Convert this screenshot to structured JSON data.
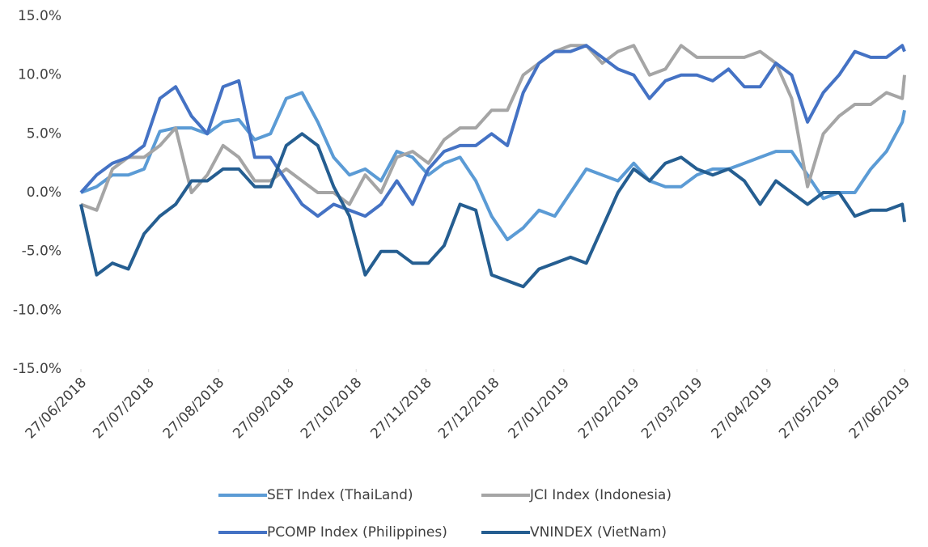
{
  "chart_data": {
    "type": "line",
    "x": [
      "27/06/2018",
      "04/07/2018",
      "11/07/2018",
      "18/07/2018",
      "25/07/2018",
      "01/08/2018",
      "08/08/2018",
      "15/08/2018",
      "22/08/2018",
      "29/08/2018",
      "05/09/2018",
      "12/09/2018",
      "19/09/2018",
      "26/09/2018",
      "03/10/2018",
      "10/10/2018",
      "17/10/2018",
      "24/10/2018",
      "31/10/2018",
      "07/11/2018",
      "14/11/2018",
      "21/11/2018",
      "28/11/2018",
      "05/12/2018",
      "12/12/2018",
      "19/12/2018",
      "26/12/2018",
      "02/01/2019",
      "09/01/2019",
      "16/01/2019",
      "23/01/2019",
      "30/01/2019",
      "06/02/2019",
      "13/02/2019",
      "20/02/2019",
      "27/02/2019",
      "06/03/2019",
      "13/03/2019",
      "20/03/2019",
      "27/03/2019",
      "03/04/2019",
      "10/04/2019",
      "17/04/2019",
      "24/04/2019",
      "01/05/2019",
      "08/05/2019",
      "15/05/2019",
      "22/05/2019",
      "29/05/2019",
      "05/06/2019",
      "12/06/2019",
      "19/06/2019",
      "26/06/2019",
      "27/06/2019"
    ],
    "series": [
      {
        "name": "SET Index (ThaiLand)",
        "color": "#5b9bd5",
        "values": [
          0,
          0.5,
          1.5,
          1.5,
          2,
          5.2,
          5.5,
          5.5,
          5,
          6,
          6.2,
          4.5,
          5,
          8,
          8.5,
          6,
          3,
          1.5,
          2,
          1,
          3.5,
          3,
          1.5,
          2.5,
          3,
          1,
          -2,
          -4,
          -3,
          -1.5,
          -2,
          0,
          2,
          1.5,
          1,
          2.5,
          1,
          0.5,
          0.5,
          1.5,
          2,
          2,
          2.5,
          3,
          3.5,
          3.5,
          1.5,
          -0.5,
          0,
          0,
          2,
          3.5,
          6,
          7
        ]
      },
      {
        "name": "JCI Index (Indonesia)",
        "color": "#a5a5a5",
        "values": [
          -1,
          -1.5,
          2,
          3,
          3,
          4,
          5.5,
          0,
          1.5,
          4,
          3,
          1,
          1,
          2,
          1,
          0,
          0,
          -1,
          1.5,
          0,
          3,
          3.5,
          2.5,
          4.5,
          5.5,
          5.5,
          7,
          7,
          10,
          11,
          12,
          12.5,
          12.5,
          11,
          12,
          12.5,
          10,
          10.5,
          12.5,
          11.5,
          11.5,
          11.5,
          11.5,
          12,
          11,
          8,
          0.5,
          5,
          6.5,
          7.5,
          7.5,
          8.5,
          8,
          10
        ]
      },
      {
        "name": "PCOMP Index (Philippines)",
        "color": "#4472c4",
        "values": [
          0,
          1.5,
          2.5,
          3,
          4,
          8,
          9,
          6.5,
          5,
          9,
          9.5,
          3,
          3,
          1,
          -1,
          -2,
          -1,
          -1.5,
          -2,
          -1,
          1,
          -1,
          2,
          3.5,
          4,
          4,
          5,
          4,
          8.5,
          11,
          12,
          12,
          12.5,
          11.5,
          10.5,
          10,
          8,
          9.5,
          10,
          10,
          9.5,
          10.5,
          9,
          9,
          11,
          10,
          6,
          8.5,
          10,
          12,
          11.5,
          11.5,
          12.5,
          12
        ]
      },
      {
        "name": "VNINDEX (VietNam)",
        "color": "#255e91",
        "values": [
          -1,
          -7,
          -6,
          -6.5,
          -3.5,
          -2,
          -1,
          1,
          1,
          2,
          2,
          0.5,
          0.5,
          4,
          5,
          4,
          0.5,
          -2,
          -7,
          -5,
          -5,
          -6,
          -6,
          -4.5,
          -1,
          -1.5,
          -7,
          -7.5,
          -8,
          -6.5,
          -6,
          -5.5,
          -6,
          -3,
          0,
          2,
          1,
          2.5,
          3,
          2,
          1.5,
          2,
          1,
          -1,
          1,
          0,
          -1,
          0,
          0,
          -2,
          -1.5,
          -1.5,
          -1,
          -2.5
        ]
      }
    ],
    "xlim": [
      "27/06/2018",
      "27/06/2019"
    ],
    "xticks": [
      "27/06/2018",
      "27/07/2018",
      "27/08/2018",
      "27/09/2018",
      "27/10/2018",
      "27/11/2018",
      "27/12/2018",
      "27/01/2019",
      "27/02/2019",
      "27/03/2019",
      "27/04/2019",
      "27/05/2019",
      "27/06/2019"
    ],
    "ylim": [
      -15,
      15
    ],
    "yticks": [
      {
        "value": -15,
        "label": "-15.0%"
      },
      {
        "value": -10,
        "label": "-10.0%"
      },
      {
        "value": -5,
        "label": "-5.0%"
      },
      {
        "value": 0,
        "label": "0.0%"
      },
      {
        "value": 5,
        "label": "5.0%"
      },
      {
        "value": 10,
        "label": "10.0%"
      },
      {
        "value": 15,
        "label": "15.0%"
      }
    ],
    "grid": false
  }
}
